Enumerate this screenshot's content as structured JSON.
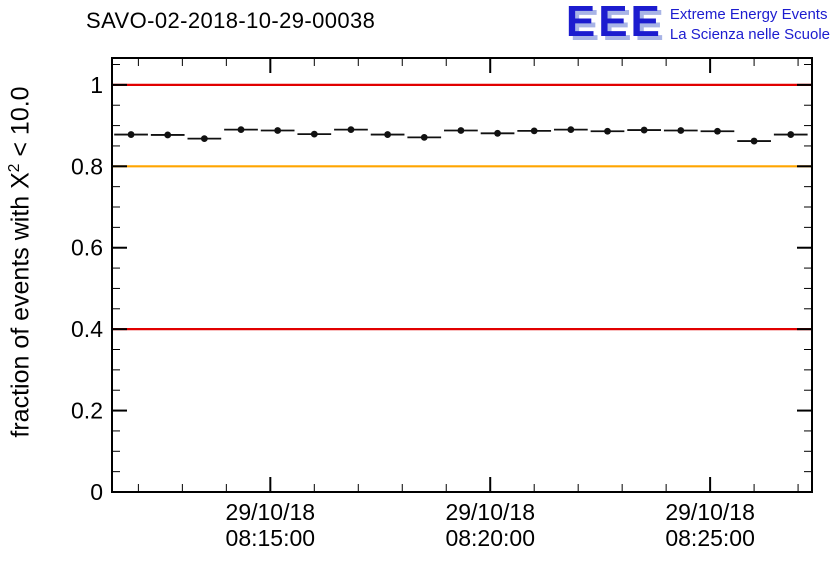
{
  "header": {
    "title": "SAVO-02-2018-10-29-00038",
    "logo": {
      "acronym": "EEE",
      "line1": "Extreme Energy Events",
      "line2": "La Scienza nelle Scuole",
      "color": "#1c1ccf"
    }
  },
  "chart_data": {
    "type": "scatter",
    "title": "SAVO-02-2018-10-29-00038",
    "xlabel": "",
    "ylabel": "fraction of events with X² < 10.0",
    "ylabel_parts": {
      "pre": "fraction of events with X",
      "sup": "2",
      "post": " < 10.0"
    },
    "grid": false,
    "ylim": [
      0,
      1.066
    ],
    "xlim_seconds_after_0800": [
      684,
      1639
    ],
    "y_ticks": {
      "major": [
        0,
        0.2,
        0.4,
        0.6,
        0.8,
        1
      ],
      "labels": [
        "0",
        "0.2",
        "0.4",
        "0.6",
        "0.8",
        "1"
      ],
      "minor_step": 0.05
    },
    "x_ticks": {
      "major_seconds_after_0800": [
        900,
        1200,
        1500
      ],
      "labels": [
        [
          "29/10/18",
          "08:15:00"
        ],
        [
          "29/10/18",
          "08:20:00"
        ],
        [
          "29/10/18",
          "08:25:00"
        ]
      ],
      "minor_step_seconds": 60
    },
    "series": [
      {
        "name": "fraction of events with chi2 < 10",
        "marker": "dot",
        "color": "#111111",
        "x_err_seconds": 23,
        "x_seconds_after_0800": [
          710,
          760,
          810,
          860,
          910,
          960,
          1010,
          1060,
          1110,
          1160,
          1210,
          1260,
          1310,
          1360,
          1410,
          1460,
          1510,
          1560,
          1610
        ],
        "values": [
          0.878,
          0.877,
          0.868,
          0.89,
          0.888,
          0.879,
          0.89,
          0.878,
          0.871,
          0.888,
          0.881,
          0.887,
          0.89,
          0.886,
          0.889,
          0.888,
          0.886,
          0.862,
          0.878
        ]
      }
    ],
    "reference_lines": [
      {
        "y": 1.0,
        "color": "#e10000",
        "meaning": "upper red threshold"
      },
      {
        "y": 0.8,
        "color": "#ffa500",
        "meaning": "orange warning threshold"
      },
      {
        "y": 0.4,
        "color": "#e10000",
        "meaning": "lower red threshold"
      }
    ]
  }
}
